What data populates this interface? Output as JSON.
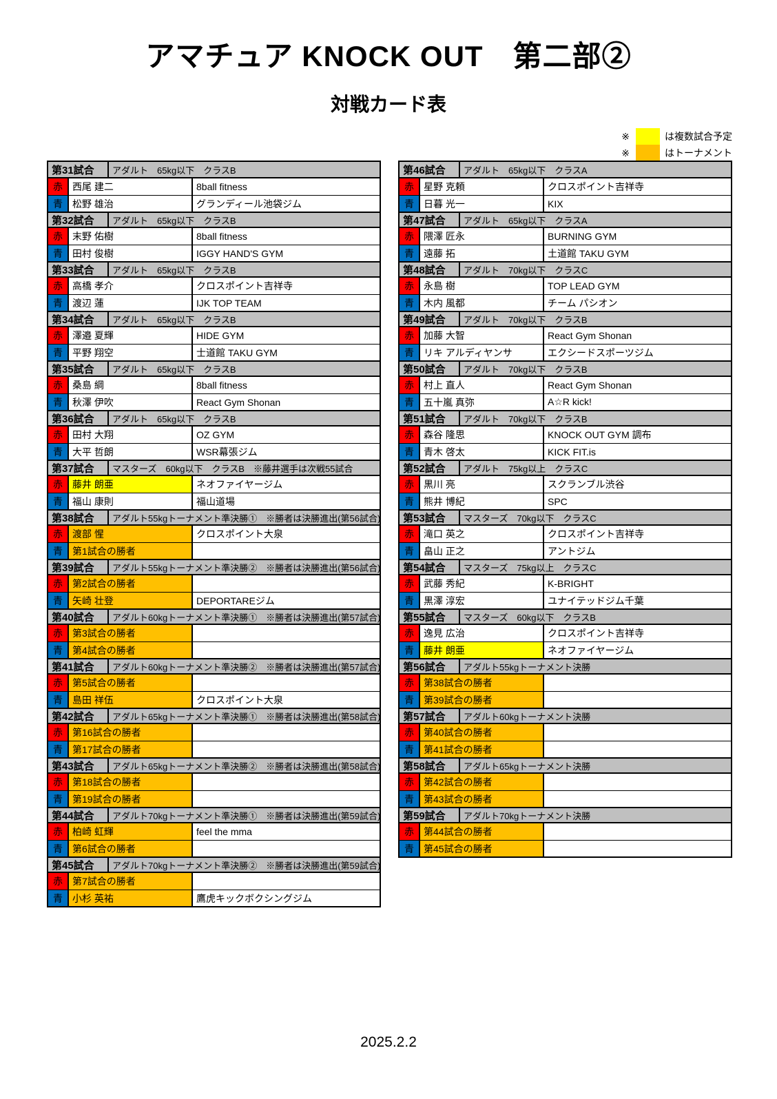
{
  "title": "アマチュア KNOCK OUT　第二部②",
  "subtitle": "対戦カード表",
  "legend": [
    {
      "symbol": "※",
      "color": "#FFFF00",
      "label": "は複数試合予定"
    },
    {
      "symbol": "※",
      "color": "#FFC000",
      "label": "はトーナメント"
    }
  ],
  "corner_labels": {
    "red": "赤",
    "blue": "青"
  },
  "colors": {
    "red_corner": "#FF0000",
    "blue_corner": "#0070C0",
    "header_gray": "#C0C0C0",
    "tournament_orange": "#FFC000",
    "multi_bout_yellow": "#FFFF00"
  },
  "footer_date": "2025.2.2",
  "columns": {
    "left": [
      {
        "no": "第31試合",
        "category": "アダルト　65kg以下　クラスB",
        "red": {
          "name": "西尾 建二",
          "gym": "8ball fitness",
          "highlight": null
        },
        "blue": {
          "name": "松野 雄治",
          "gym": "グランディール池袋ジム",
          "highlight": null
        }
      },
      {
        "no": "第32試合",
        "category": "アダルト　65kg以下　クラスB",
        "red": {
          "name": "末野 佑樹",
          "gym": "8ball fitness",
          "highlight": null
        },
        "blue": {
          "name": "田村 俊樹",
          "gym": "IGGY HAND'S GYM",
          "highlight": null
        }
      },
      {
        "no": "第33試合",
        "category": "アダルト　65kg以下　クラスB",
        "red": {
          "name": "高橋 孝介",
          "gym": "クロスポイント吉祥寺",
          "highlight": null
        },
        "blue": {
          "name": "渡辺 蓮",
          "gym": "IJK TOP TEAM",
          "highlight": null
        }
      },
      {
        "no": "第34試合",
        "category": "アダルト　65kg以下　クラスB",
        "red": {
          "name": "澤邉 夏輝",
          "gym": "HIDE GYM",
          "highlight": null
        },
        "blue": {
          "name": "平野 翔空",
          "gym": "士道館 TAKU GYM",
          "highlight": null
        }
      },
      {
        "no": "第35試合",
        "category": "アダルト　65kg以下　クラスB",
        "red": {
          "name": "桑島 綱",
          "gym": "8ball fitness",
          "highlight": null
        },
        "blue": {
          "name": "秋澤 伊吹",
          "gym": "React Gym Shonan",
          "highlight": null
        }
      },
      {
        "no": "第36試合",
        "category": "アダルト　65kg以下　クラスB",
        "red": {
          "name": "田村 大翔",
          "gym": "OZ GYM",
          "highlight": null
        },
        "blue": {
          "name": "大平 哲朗",
          "gym": "WSR幕張ジム",
          "highlight": null
        }
      },
      {
        "no": "第37試合",
        "category": "マスターズ　60kg以下　クラスB　※藤井選手は次戦55試合",
        "red": {
          "name": "藤井 朗亜",
          "gym": "ネオファイヤージム",
          "highlight": "yellow"
        },
        "blue": {
          "name": "福山 康則",
          "gym": "福山道場",
          "highlight": null
        }
      },
      {
        "no": "第38試合",
        "category": "アダルト55kgトーナメント準決勝①　※勝者は決勝進出(第56試合)",
        "red": {
          "name": "渡部 惺",
          "gym": "クロスポイント大泉",
          "highlight": "orange"
        },
        "blue": {
          "name": "第1試合の勝者",
          "gym": "",
          "highlight": "orange"
        }
      },
      {
        "no": "第39試合",
        "category": "アダルト55kgトーナメント準決勝②　※勝者は決勝進出(第56試合)",
        "red": {
          "name": "第2試合の勝者",
          "gym": "",
          "highlight": "orange"
        },
        "blue": {
          "name": "矢崎 壮登",
          "gym": "DEPORTAREジム",
          "highlight": "orange"
        }
      },
      {
        "no": "第40試合",
        "category": "アダルト60kgトーナメント準決勝①　※勝者は決勝進出(第57試合)",
        "red": {
          "name": "第3試合の勝者",
          "gym": "",
          "highlight": "orange"
        },
        "blue": {
          "name": "第4試合の勝者",
          "gym": "",
          "highlight": "orange"
        }
      },
      {
        "no": "第41試合",
        "category": "アダルト60kgトーナメント準決勝②　※勝者は決勝進出(第57試合)",
        "red": {
          "name": "第5試合の勝者",
          "gym": "",
          "highlight": "orange"
        },
        "blue": {
          "name": "島田 祥伍",
          "gym": "クロスポイント大泉",
          "highlight": "orange"
        }
      },
      {
        "no": "第42試合",
        "category": "アダルト65kgトーナメント準決勝①　※勝者は決勝進出(第58試合)",
        "red": {
          "name": "第16試合の勝者",
          "gym": "",
          "highlight": "orange"
        },
        "blue": {
          "name": "第17試合の勝者",
          "gym": "",
          "highlight": "orange"
        }
      },
      {
        "no": "第43試合",
        "category": "アダルト65kgトーナメント準決勝②　※勝者は決勝進出(第58試合)",
        "red": {
          "name": "第18試合の勝者",
          "gym": "",
          "highlight": "orange"
        },
        "blue": {
          "name": "第19試合の勝者",
          "gym": "",
          "highlight": "orange"
        }
      },
      {
        "no": "第44試合",
        "category": "アダルト70kgトーナメント準決勝①　※勝者は決勝進出(第59試合)",
        "red": {
          "name": "柏崎 虹輝",
          "gym": "feel the mma",
          "highlight": "orange"
        },
        "blue": {
          "name": "第6試合の勝者",
          "gym": "",
          "highlight": "orange"
        }
      },
      {
        "no": "第45試合",
        "category": "アダルト70kgトーナメント準決勝②　※勝者は決勝進出(第59試合)",
        "red": {
          "name": "第7試合の勝者",
          "gym": "",
          "highlight": "orange"
        },
        "blue": {
          "name": "小杉 英祐",
          "gym": "鷹虎キックボクシングジム",
          "highlight": "orange"
        }
      }
    ],
    "right": [
      {
        "no": "第46試合",
        "category": "アダルト　65kg以下　クラスA",
        "red": {
          "name": "星野 克頼",
          "gym": "クロスポイント吉祥寺",
          "highlight": null
        },
        "blue": {
          "name": "日暮 光一",
          "gym": "KIX",
          "highlight": null
        }
      },
      {
        "no": "第47試合",
        "category": "アダルト　65kg以下　クラスA",
        "red": {
          "name": "隈澤 匠永",
          "gym": "BURNING GYM",
          "highlight": null
        },
        "blue": {
          "name": "遠藤 拓",
          "gym": "土道館 TAKU GYM",
          "highlight": null
        }
      },
      {
        "no": "第48試合",
        "category": "アダルト　70kg以下　クラスC",
        "red": {
          "name": "永島 樹",
          "gym": "TOP LEAD GYM",
          "highlight": null
        },
        "blue": {
          "name": "木内 風都",
          "gym": "チーム パシオン",
          "highlight": null
        }
      },
      {
        "no": "第49試合",
        "category": "アダルト　70kg以下　クラスB",
        "red": {
          "name": "加藤 大智",
          "gym": "React Gym Shonan",
          "highlight": null
        },
        "blue": {
          "name": "リキ アルディヤンサ",
          "gym": "エクシードスポーツジム",
          "highlight": null
        }
      },
      {
        "no": "第50試合",
        "category": "アダルト　70kg以下　クラスB",
        "red": {
          "name": "村上 直人",
          "gym": "React Gym Shonan",
          "highlight": null
        },
        "blue": {
          "name": "五十嵐 真弥",
          "gym": "A☆R kick!",
          "highlight": null
        }
      },
      {
        "no": "第51試合",
        "category": "アダルト　70kg以下　クラスB",
        "red": {
          "name": "森谷 隆思",
          "gym": "KNOCK OUT GYM 調布",
          "highlight": null
        },
        "blue": {
          "name": "青木 啓太",
          "gym": "KICK FIT.is",
          "highlight": null
        }
      },
      {
        "no": "第52試合",
        "category": "アダルト　75kg以上　クラスC",
        "red": {
          "name": "黒川 亮",
          "gym": "スクランブル渋谷",
          "highlight": null
        },
        "blue": {
          "name": "熊井 博紀",
          "gym": "SPC",
          "highlight": null
        }
      },
      {
        "no": "第53試合",
        "category": "マスターズ　70kg以下　クラスC",
        "red": {
          "name": "滝口 英之",
          "gym": "クロスポイント吉祥寺",
          "highlight": null
        },
        "blue": {
          "name": "畠山 正之",
          "gym": "アントジム",
          "highlight": null
        }
      },
      {
        "no": "第54試合",
        "category": "マスターズ　75kg以上　クラスC",
        "red": {
          "name": "武藤 秀紀",
          "gym": "K-BRIGHT",
          "highlight": null
        },
        "blue": {
          "name": "黒澤 淳宏",
          "gym": "ユナイテッドジム千葉",
          "highlight": null
        }
      },
      {
        "no": "第55試合",
        "category": "マスターズ　60kg以下　クラスB",
        "red": {
          "name": "逸見 広治",
          "gym": "クロスポイント吉祥寺",
          "highlight": null
        },
        "blue": {
          "name": "藤井 朗亜",
          "gym": "ネオファイヤージム",
          "highlight": "yellow"
        }
      },
      {
        "no": "第56試合",
        "category": "アダルト55kgトーナメント決勝",
        "red": {
          "name": "第38試合の勝者",
          "gym": "",
          "highlight": "orange"
        },
        "blue": {
          "name": "第39試合の勝者",
          "gym": "",
          "highlight": "orange"
        }
      },
      {
        "no": "第57試合",
        "category": "アダルト60kgトーナメント決勝",
        "red": {
          "name": "第40試合の勝者",
          "gym": "",
          "highlight": "orange"
        },
        "blue": {
          "name": "第41試合の勝者",
          "gym": "",
          "highlight": "orange"
        }
      },
      {
        "no": "第58試合",
        "category": "アダルト65kgトーナメント決勝",
        "red": {
          "name": "第42試合の勝者",
          "gym": "",
          "highlight": "orange"
        },
        "blue": {
          "name": "第43試合の勝者",
          "gym": "",
          "highlight": "orange"
        }
      },
      {
        "no": "第59試合",
        "category": "アダルト70kgトーナメント決勝",
        "red": {
          "name": "第44試合の勝者",
          "gym": "",
          "highlight": "orange"
        },
        "blue": {
          "name": "第45試合の勝者",
          "gym": "",
          "highlight": "orange"
        }
      }
    ]
  }
}
